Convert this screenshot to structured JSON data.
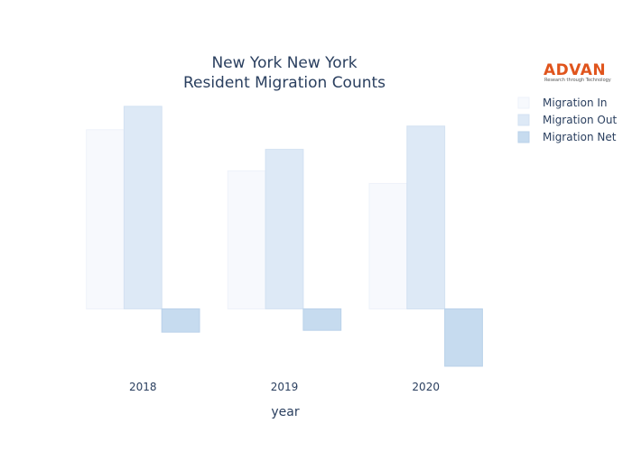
{
  "chart_data": {
    "type": "bar",
    "title": "New York New York",
    "subtitle": "Resident Migration Counts",
    "xlabel": "year",
    "ylabel": "",
    "categories": [
      "2018",
      "2019",
      "2020"
    ],
    "series": [
      {
        "name": "Migration In",
        "values": [
          100,
          77,
          70
        ],
        "color": "#f7f9fd",
        "stroke": "#eef2fa"
      },
      {
        "name": "Migration Out",
        "values": [
          113,
          89,
          102
        ],
        "color": "#dde9f6",
        "stroke": "#d3e1f2"
      },
      {
        "name": "Migration Net",
        "values": [
          -13,
          -12,
          -32
        ],
        "color": "#c6dbef",
        "stroke": "#b9d1ea"
      }
    ],
    "ylim": [
      -34,
      118
    ],
    "grid": false,
    "show_yaxis": false,
    "legend_position": "top-right"
  },
  "logo": {
    "name": "ADVAN",
    "tagline": "Research through Technology",
    "color": "#e0541c"
  }
}
